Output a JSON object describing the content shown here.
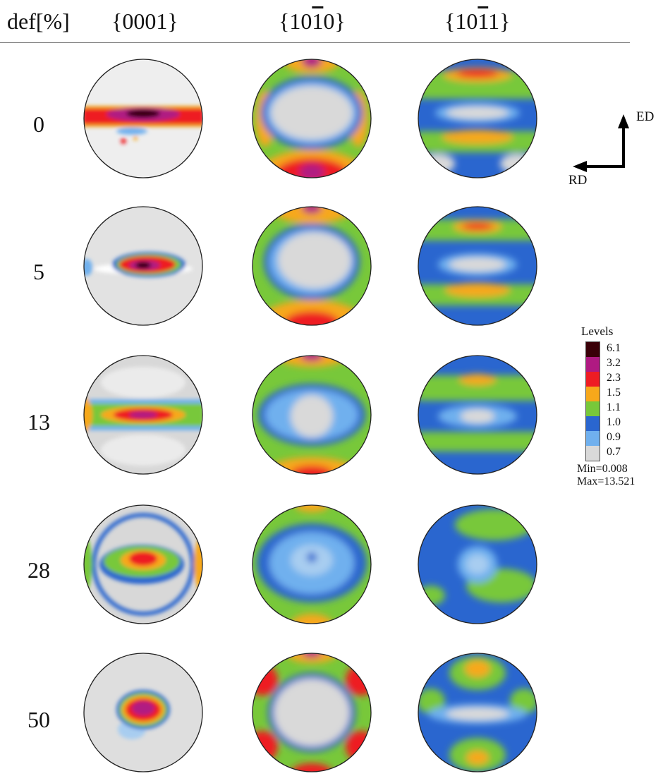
{
  "header": {
    "col0": "def[%]",
    "col1": "{0001}",
    "col2_a": "{10",
    "col2_b": "1",
    "col2_c": "0}",
    "col3_a": "{10",
    "col3_b": "1",
    "col3_c": "1}"
  },
  "rows": [
    "0",
    "5",
    "13",
    "28",
    "50"
  ],
  "axes": {
    "ed": "ED",
    "rd": "RD"
  },
  "legend": {
    "title": "Levels",
    "levels": [
      "6.1",
      "3.2",
      "2.3",
      "1.5",
      "1.1",
      "1.0",
      "0.9",
      "0.7"
    ],
    "colors": [
      "#3a0008",
      "#b01a82",
      "#ee1c24",
      "#f7a81b",
      "#78c83a",
      "#2a66cf",
      "#70b0ee",
      "#d9d9d9"
    ],
    "min": "Min=0.008",
    "max": "Max=13.521"
  }
}
